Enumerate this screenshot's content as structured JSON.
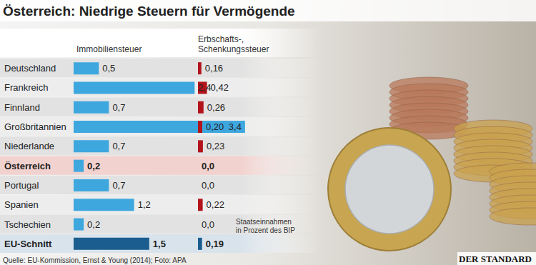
{
  "title": "Österreich: Niedrige Steuern für Vermögende",
  "source": "Quelle: EU-Kommission, Ernst & Young (2014); Foto: APA",
  "logo": "DER STANDARD",
  "chart_data": [
    {
      "type": "bar",
      "orientation": "horizontal",
      "title": "Immobiliensteuer",
      "categories": [
        "Deutschland",
        "Frankreich",
        "Finnland",
        "Großbritannien",
        "Niederlande",
        "Österreich",
        "Portugal",
        "Spanien",
        "Tschechien",
        "EU-Schnitt"
      ],
      "values": [
        0.5,
        2.4,
        0.7,
        3.4,
        0.7,
        0.2,
        0.7,
        1.2,
        0.2,
        1.5
      ],
      "value_labels": [
        "0,5",
        "2,4",
        "0,7",
        "3,4",
        "0,7",
        "0,2",
        "0,7",
        "1,2",
        "0,2",
        "1,5"
      ],
      "colors": [
        "#3ea7de",
        "#3ea7de",
        "#3ea7de",
        "#3ea7de",
        "#3ea7de",
        "#3ea7de",
        "#3ea7de",
        "#3ea7de",
        "#3ea7de",
        "#1b5d8e"
      ],
      "xlim": [
        0,
        3.6
      ],
      "data_labels": true,
      "tick_labels": false,
      "grid": false
    },
    {
      "type": "bar",
      "orientation": "horizontal",
      "title": "Erbschafts-,\nSchenkungssteuer",
      "annotations": [
        "Staatseinnahmen\nin Prozent des BIP"
      ],
      "categories": [
        "Deutschland",
        "Frankreich",
        "Finnland",
        "Großbritannien",
        "Niederlande",
        "Österreich",
        "Portugal",
        "Spanien",
        "Tschechien",
        "EU-Schnitt"
      ],
      "values": [
        0.16,
        0.42,
        0.26,
        0.2,
        0.23,
        0.0,
        0.0,
        0.22,
        0.0,
        0.19
      ],
      "value_labels": [
        "0,16",
        "0,42",
        "0,26",
        "0,20",
        "0,23",
        "0,0",
        "0,0",
        "0,22",
        "0,0",
        "0,19"
      ],
      "colors": [
        "#b3141c",
        "#b3141c",
        "#b3141c",
        "#b3141c",
        "#b3141c",
        "#b3141c",
        "#b3141c",
        "#b3141c",
        "#b3141c",
        "#1b5d8e"
      ],
      "xlim": [
        0,
        1
      ],
      "data_labels": true,
      "tick_labels": false,
      "grid": false
    }
  ]
}
